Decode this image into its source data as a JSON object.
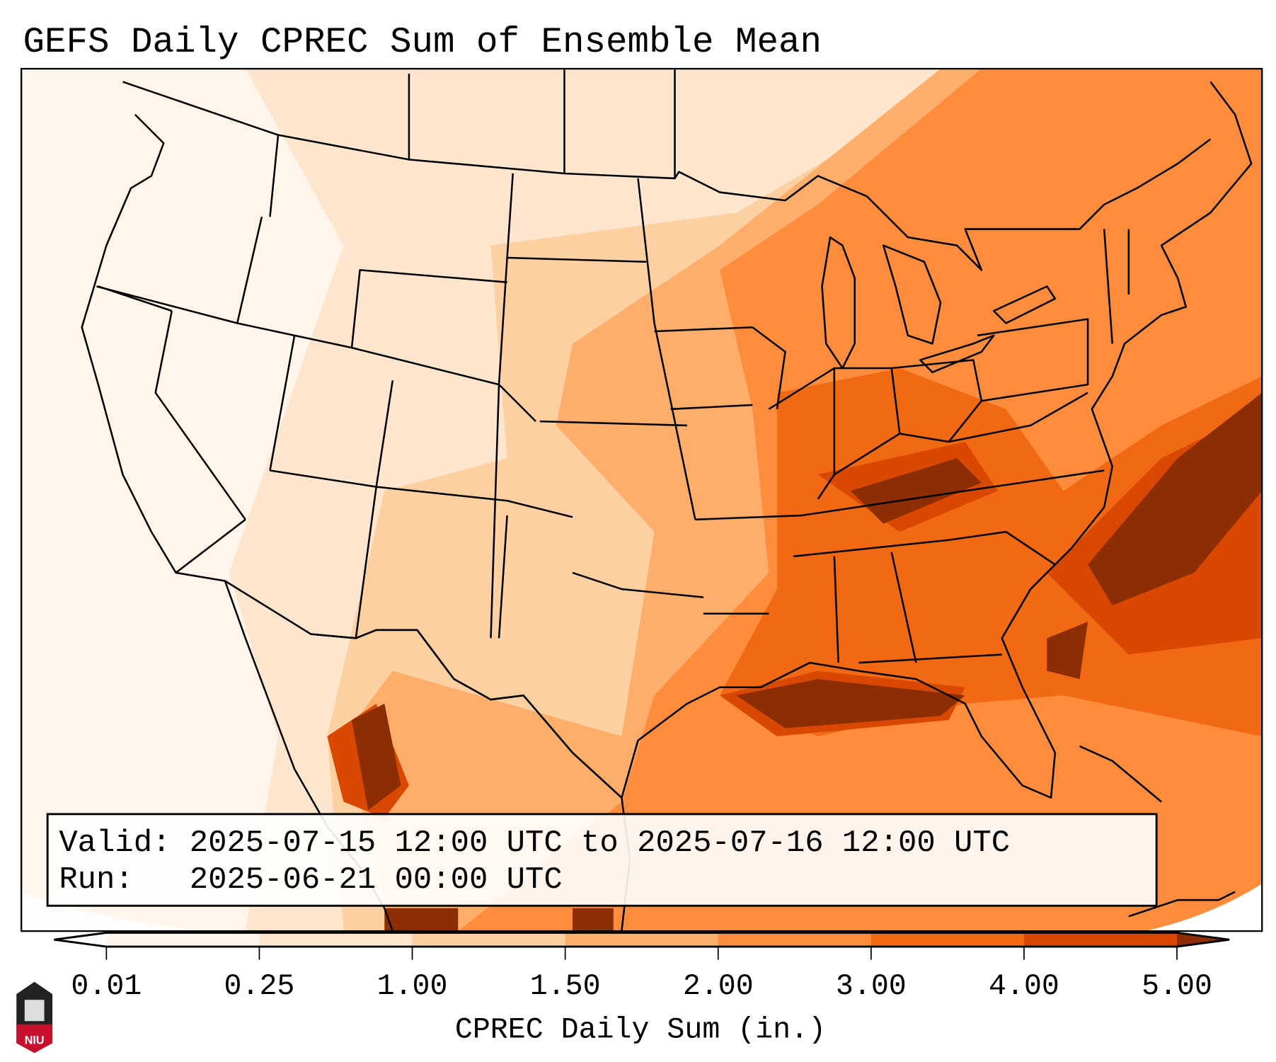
{
  "title": "GEFS Daily CPREC Sum of Ensemble Mean",
  "info_box": {
    "valid": "Valid: 2025-07-15 12:00 UTC to 2025-07-16 12:00 UTC",
    "run": "Run:   2025-06-21 00:00 UTC"
  },
  "colorbar": {
    "label": "CPREC Daily Sum (in.)",
    "ticks": [
      "0.01",
      "0.25",
      "1.00",
      "1.50",
      "2.00",
      "3.00",
      "4.00",
      "5.00"
    ],
    "colors": [
      "#fff5eb",
      "#fee6ce",
      "#fdd0a2",
      "#fdae6b",
      "#fd8d3c",
      "#f16913",
      "#d94801",
      "#8c2d04"
    ],
    "under_color": "#ffffff",
    "extend": "both"
  },
  "logo": {
    "text": "NIU"
  }
}
